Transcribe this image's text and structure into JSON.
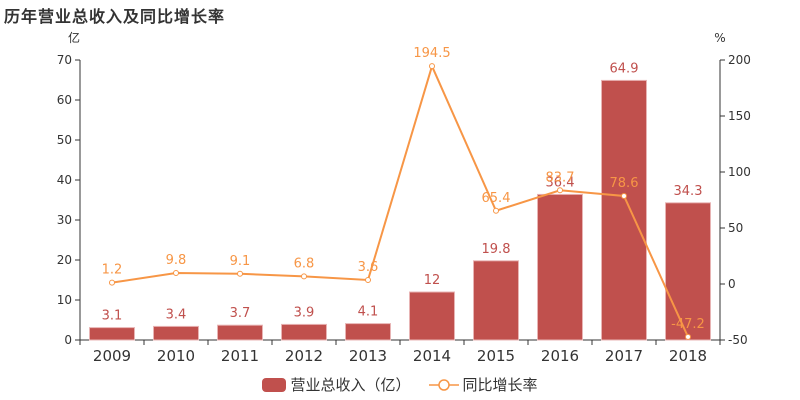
{
  "title": "历年营业总收入及同比增长率",
  "colors": {
    "bar": "#c0504d",
    "line": "#f79646",
    "axis": "#333333"
  },
  "legend": {
    "bar_label": "营业总收入（亿）",
    "line_label": "同比增长率"
  },
  "chart_data": {
    "type": "bar+line",
    "title": "历年营业总收入及同比增长率",
    "categories": [
      "2009",
      "2010",
      "2011",
      "2012",
      "2013",
      "2014",
      "2015",
      "2016",
      "2017",
      "2018"
    ],
    "series": [
      {
        "name": "营业总收入（亿）",
        "type": "bar",
        "axis": "left",
        "values": [
          3.1,
          3.4,
          3.7,
          3.9,
          4.1,
          12,
          19.8,
          36.4,
          64.9,
          34.3
        ]
      },
      {
        "name": "同比增长率",
        "type": "line",
        "axis": "right",
        "values": [
          1.2,
          9.8,
          9.1,
          6.8,
          3.6,
          194.5,
          65.4,
          83.7,
          78.6,
          -47.2
        ]
      }
    ],
    "y_left": {
      "label": "亿",
      "range": [
        0,
        70
      ],
      "ticks": [
        0,
        10,
        20,
        30,
        40,
        50,
        60,
        70
      ]
    },
    "y_right": {
      "label": "%",
      "range": [
        -50,
        200
      ],
      "ticks": [
        -50,
        0,
        50,
        100,
        150,
        200
      ]
    },
    "grid": false,
    "legend_position": "bottom"
  }
}
